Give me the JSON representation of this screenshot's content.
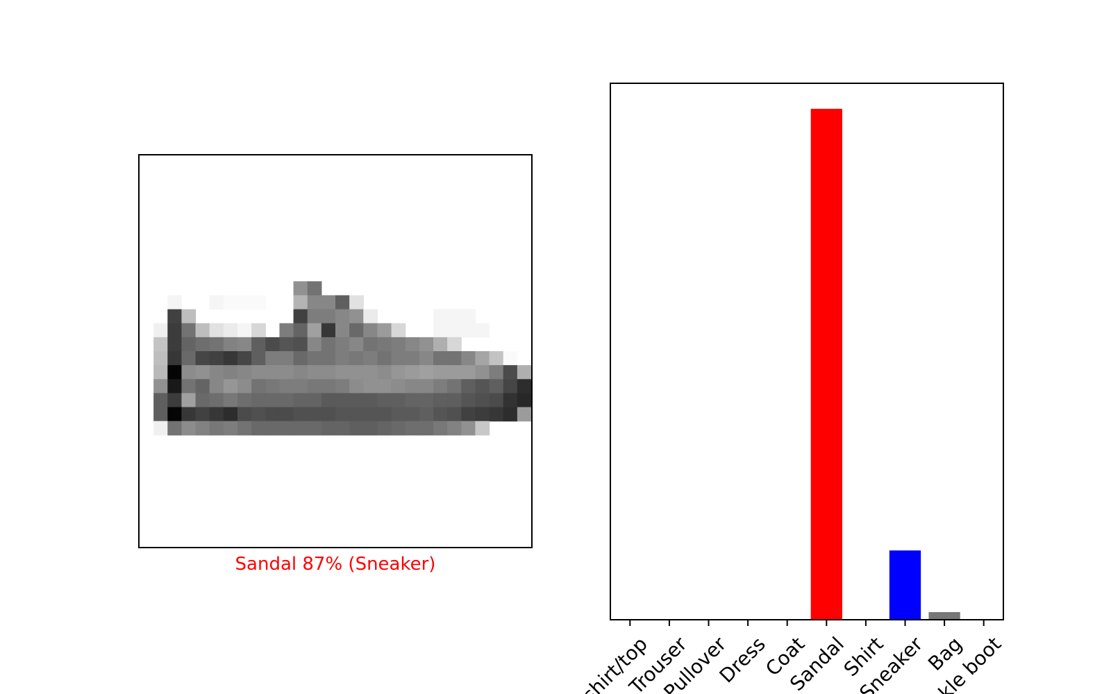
{
  "image_panel": {
    "caption": "Sandal 87% (Sneaker)",
    "caption_color": "#ff0000",
    "image_rows": [
      [
        0,
        0,
        0,
        0,
        0,
        0,
        0,
        0,
        0,
        0,
        0,
        0,
        0,
        0,
        0,
        0,
        0,
        0,
        0,
        0,
        0,
        0,
        0,
        0,
        0,
        0,
        0,
        0
      ],
      [
        0,
        0,
        0,
        0,
        0,
        0,
        0,
        0,
        0,
        0,
        0,
        0,
        0,
        0,
        0,
        0,
        0,
        0,
        0,
        0,
        0,
        0,
        0,
        0,
        0,
        0,
        0,
        0
      ],
      [
        0,
        0,
        0,
        0,
        0,
        0,
        0,
        0,
        0,
        0,
        0,
        0,
        0,
        0,
        0,
        0,
        0,
        0,
        0,
        0,
        0,
        0,
        0,
        0,
        0,
        0,
        0,
        0
      ],
      [
        0,
        0,
        0,
        0,
        0,
        0,
        0,
        0,
        0,
        0,
        0,
        0,
        0,
        0,
        0,
        0,
        0,
        0,
        0,
        0,
        0,
        0,
        0,
        0,
        0,
        0,
        0,
        0
      ],
      [
        0,
        0,
        0,
        0,
        0,
        0,
        0,
        0,
        0,
        0,
        0,
        0,
        0,
        0,
        0,
        0,
        0,
        0,
        0,
        0,
        0,
        0,
        0,
        0,
        0,
        0,
        0,
        0
      ],
      [
        0,
        0,
        0,
        0,
        0,
        0,
        0,
        0,
        0,
        0,
        0,
        0,
        0,
        0,
        0,
        0,
        0,
        0,
        0,
        0,
        0,
        0,
        0,
        0,
        0,
        0,
        0,
        0
      ],
      [
        0,
        0,
        0,
        0,
        0,
        0,
        0,
        0,
        0,
        0,
        0,
        0,
        0,
        0,
        0,
        0,
        0,
        0,
        0,
        0,
        0,
        0,
        0,
        0,
        0,
        0,
        0,
        0
      ],
      [
        0,
        0,
        0,
        0,
        0,
        0,
        0,
        0,
        0,
        0,
        0,
        0,
        0,
        0,
        0,
        0,
        0,
        0,
        0,
        0,
        0,
        0,
        0,
        0,
        0,
        0,
        0,
        0
      ],
      [
        0,
        0,
        0,
        0,
        0,
        0,
        0,
        0,
        0,
        0,
        0,
        0,
        0,
        0,
        0,
        0,
        0,
        0,
        0,
        0,
        0,
        0,
        0,
        0,
        0,
        0,
        0,
        0
      ],
      [
        0,
        0,
        0,
        0,
        0,
        0,
        0,
        0,
        0,
        0,
        0,
        110,
        140,
        0,
        0,
        0,
        0,
        0,
        0,
        0,
        0,
        0,
        0,
        0,
        0,
        0,
        0,
        0
      ],
      [
        0,
        0,
        10,
        0,
        0,
        10,
        5,
        5,
        5,
        0,
        0,
        75,
        120,
        120,
        160,
        30,
        0,
        0,
        0,
        0,
        0,
        0,
        0,
        0,
        0,
        0,
        0,
        0
      ],
      [
        0,
        0,
        190,
        65,
        0,
        0,
        0,
        0,
        0,
        0,
        0,
        190,
        130,
        130,
        120,
        110,
        20,
        0,
        0,
        0,
        0,
        10,
        10,
        10,
        0,
        0,
        0,
        0
      ],
      [
        0,
        15,
        195,
        140,
        65,
        30,
        20,
        10,
        40,
        0,
        130,
        155,
        95,
        200,
        120,
        150,
        120,
        100,
        40,
        0,
        0,
        10,
        10,
        10,
        10,
        0,
        0,
        0
      ],
      [
        0,
        60,
        195,
        155,
        145,
        140,
        125,
        120,
        160,
        180,
        170,
        175,
        120,
        140,
        130,
        120,
        140,
        135,
        130,
        120,
        110,
        80,
        40,
        0,
        0,
        0,
        0,
        0
      ],
      [
        0,
        65,
        200,
        150,
        185,
        190,
        200,
        185,
        160,
        130,
        130,
        150,
        140,
        140,
        130,
        135,
        130,
        140,
        130,
        130,
        120,
        140,
        140,
        120,
        90,
        60,
        5,
        0
      ],
      [
        0,
        70,
        250,
        115,
        110,
        120,
        125,
        120,
        115,
        115,
        115,
        120,
        115,
        115,
        110,
        110,
        110,
        115,
        105,
        100,
        95,
        100,
        100,
        100,
        110,
        130,
        180,
        80
      ],
      [
        0,
        110,
        230,
        140,
        155,
        120,
        105,
        115,
        140,
        135,
        130,
        130,
        135,
        135,
        130,
        115,
        110,
        110,
        115,
        120,
        120,
        130,
        140,
        160,
        170,
        160,
        185,
        210
      ],
      [
        0,
        160,
        195,
        95,
        150,
        145,
        135,
        145,
        150,
        150,
        150,
        155,
        155,
        165,
        165,
        165,
        165,
        160,
        160,
        155,
        155,
        160,
        160,
        170,
        175,
        180,
        205,
        215
      ],
      [
        0,
        160,
        250,
        200,
        190,
        200,
        210,
        180,
        175,
        180,
        180,
        175,
        175,
        175,
        170,
        170,
        170,
        170,
        165,
        165,
        160,
        170,
        175,
        190,
        195,
        200,
        210,
        100
      ],
      [
        0,
        15,
        140,
        115,
        125,
        135,
        130,
        140,
        150,
        150,
        150,
        150,
        150,
        155,
        155,
        160,
        160,
        155,
        150,
        145,
        145,
        135,
        125,
        110,
        55,
        0,
        0,
        0
      ],
      [
        0,
        0,
        0,
        0,
        0,
        0,
        0,
        0,
        0,
        0,
        0,
        0,
        0,
        0,
        0,
        0,
        0,
        0,
        0,
        0,
        0,
        0,
        0,
        0,
        0,
        0,
        0,
        0
      ],
      [
        0,
        0,
        0,
        0,
        0,
        0,
        0,
        0,
        0,
        0,
        0,
        0,
        0,
        0,
        0,
        0,
        0,
        0,
        0,
        0,
        0,
        0,
        0,
        0,
        0,
        0,
        0,
        0
      ],
      [
        0,
        0,
        0,
        0,
        0,
        0,
        0,
        0,
        0,
        0,
        0,
        0,
        0,
        0,
        0,
        0,
        0,
        0,
        0,
        0,
        0,
        0,
        0,
        0,
        0,
        0,
        0,
        0
      ],
      [
        0,
        0,
        0,
        0,
        0,
        0,
        0,
        0,
        0,
        0,
        0,
        0,
        0,
        0,
        0,
        0,
        0,
        0,
        0,
        0,
        0,
        0,
        0,
        0,
        0,
        0,
        0,
        0
      ],
      [
        0,
        0,
        0,
        0,
        0,
        0,
        0,
        0,
        0,
        0,
        0,
        0,
        0,
        0,
        0,
        0,
        0,
        0,
        0,
        0,
        0,
        0,
        0,
        0,
        0,
        0,
        0,
        0
      ],
      [
        0,
        0,
        0,
        0,
        0,
        0,
        0,
        0,
        0,
        0,
        0,
        0,
        0,
        0,
        0,
        0,
        0,
        0,
        0,
        0,
        0,
        0,
        0,
        0,
        0,
        0,
        0,
        0
      ],
      [
        0,
        0,
        0,
        0,
        0,
        0,
        0,
        0,
        0,
        0,
        0,
        0,
        0,
        0,
        0,
        0,
        0,
        0,
        0,
        0,
        0,
        0,
        0,
        0,
        0,
        0,
        0,
        0
      ],
      [
        0,
        0,
        0,
        0,
        0,
        0,
        0,
        0,
        0,
        0,
        0,
        0,
        0,
        0,
        0,
        0,
        0,
        0,
        0,
        0,
        0,
        0,
        0,
        0,
        0,
        0,
        0,
        0
      ]
    ]
  },
  "chart_data": {
    "type": "bar",
    "categories": [
      "T-shirt/top",
      "Trouser",
      "Pullover",
      "Dress",
      "Coat",
      "Sandal",
      "Shirt",
      "Sneaker",
      "Bag",
      "Ankle boot"
    ],
    "values": [
      0.0,
      0.0,
      0.0,
      0.0,
      0.0,
      0.87,
      0.0,
      0.118,
      0.013,
      0.0
    ],
    "bar_colors": [
      "#777777",
      "#777777",
      "#777777",
      "#777777",
      "#777777",
      "#ff0000",
      "#777777",
      "#0000ff",
      "#777777",
      "#777777"
    ],
    "ylim": [
      0,
      1
    ],
    "title": "",
    "xlabel": "",
    "ylabel": "",
    "grid": false,
    "yticks_visible": false
  }
}
